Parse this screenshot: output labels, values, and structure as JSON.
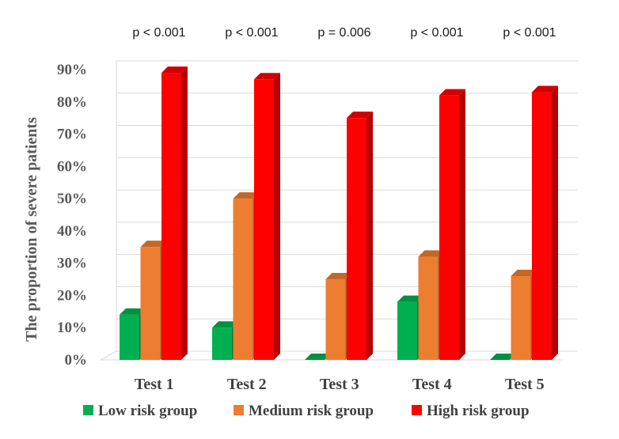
{
  "chart_data": {
    "type": "bar",
    "ylabel": "The proportion of severe patients",
    "xlabel": "",
    "ylim": [
      0,
      90
    ],
    "y_ticks": [
      "0%",
      "10%",
      "20%",
      "30%",
      "40%",
      "50%",
      "60%",
      "70%",
      "80%",
      "90%"
    ],
    "grid": true,
    "legend_position": "bottom",
    "categories": [
      "Test 1",
      "Test 2",
      "Test 3",
      "Test 4",
      "Test 5"
    ],
    "annotations": [
      "p < 0.001",
      "p < 0.001",
      "p = 0.006",
      "p < 0.001",
      "p < 0.001"
    ],
    "series": [
      {
        "name": "Low risk group",
        "color": "#00b050",
        "values": [
          14,
          10,
          0,
          18,
          0
        ]
      },
      {
        "name": "Medium risk group",
        "color": "#ed7d31",
        "values": [
          35,
          50,
          25,
          32,
          26
        ]
      },
      {
        "name": "High risk group",
        "color": "#ff0000",
        "values": [
          89,
          87,
          75,
          82,
          83
        ]
      }
    ]
  }
}
